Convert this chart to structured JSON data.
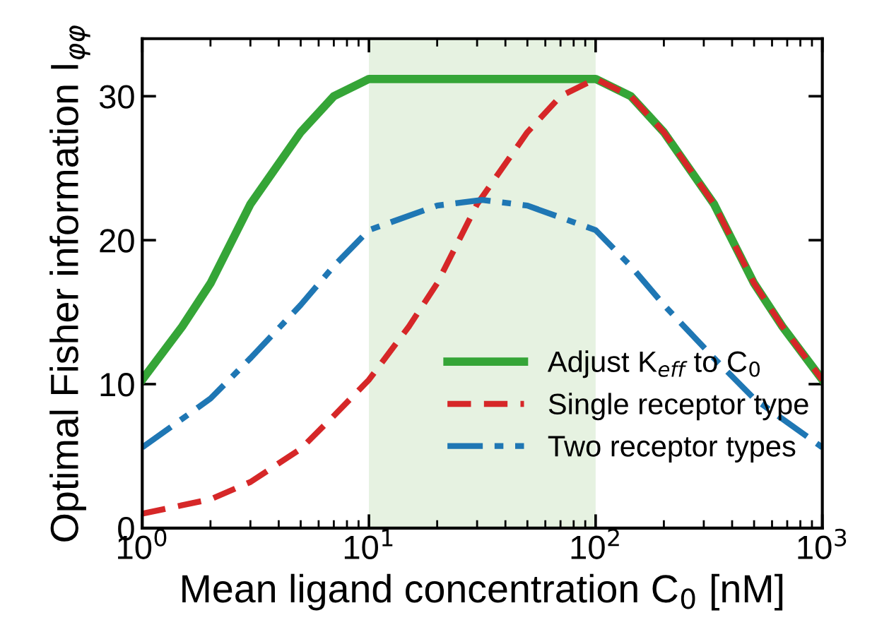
{
  "chart_data": {
    "type": "line",
    "xlabel": "Mean ligand concentration C$_{0}$ [nM]",
    "ylabel": "Optimal Fisher information I$_{φφ}$",
    "log": "x",
    "xlim": [
      1,
      1000
    ],
    "xticks": [
      {
        "value": 1,
        "label": "10$^{0}$"
      },
      {
        "value": 10,
        "label": "10$^{1}$"
      },
      {
        "value": 100,
        "label": "10$^{2}$"
      },
      {
        "value": 1000,
        "label": "10$^{3}$"
      }
    ],
    "ylim": [
      0,
      34
    ],
    "yticks": [
      0,
      10,
      20,
      30
    ],
    "grid": false,
    "legend": "bottom right",
    "bands": [
      {
        "axis": "x",
        "from": 10,
        "to": 100,
        "color": "#e6f2e1"
      }
    ],
    "series": [
      {
        "name": "Adjust K$_{eff}$ to C$_{0}$",
        "color": "#35a537",
        "line_style": "solid",
        "x": [
          1,
          1.5,
          2,
          3,
          5,
          7,
          10,
          30,
          100,
          143,
          200,
          333,
          500,
          667,
          1000
        ],
        "values": [
          10.3,
          14,
          17,
          22.5,
          27.5,
          30,
          31.2,
          31.2,
          31.2,
          30,
          27.5,
          22.5,
          17,
          14,
          10.3
        ]
      },
      {
        "name": "Single receptor type",
        "color": "#d62728",
        "line_style": "dashed",
        "x": [
          1,
          2,
          3,
          5,
          7,
          10,
          15,
          20,
          30,
          50,
          70,
          100,
          143,
          200,
          333,
          500,
          667,
          1000
        ],
        "values": [
          1.0,
          2.0,
          3.2,
          5.5,
          7.8,
          10.3,
          14,
          17,
          22.5,
          27.5,
          30,
          31.2,
          30,
          27.5,
          22.5,
          17,
          14,
          10.3
        ]
      },
      {
        "name": "Two receptor types",
        "color": "#1f77b4",
        "line_style": "dashdot",
        "x": [
          1,
          2,
          3,
          5,
          7,
          10,
          20,
          31.6,
          50,
          100,
          143,
          200,
          333,
          500,
          1000
        ],
        "values": [
          5.6,
          9,
          11.8,
          15.5,
          18.2,
          20.7,
          22.4,
          22.8,
          22.4,
          20.7,
          18.2,
          15.5,
          11.8,
          9,
          5.6
        ]
      }
    ]
  }
}
